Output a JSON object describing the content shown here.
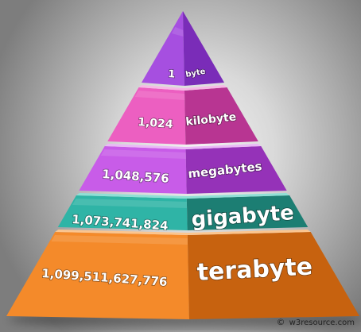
{
  "levels": [
    {
      "value": "1",
      "unit": "byte",
      "front": "#a64fe0",
      "side": "#7a2cb8",
      "top": "#cf9cf2",
      "accent": "#b866ee"
    },
    {
      "value": "1,024",
      "unit": "kilobyte",
      "front": "#ec5fc1",
      "side": "#b83592",
      "top": "#f7b8e6",
      "accent": "#f07fd0"
    },
    {
      "value": "1,048,576",
      "unit": "megabytes",
      "front": "#c85ce8",
      "side": "#9532b8",
      "top": "#eab8f7",
      "accent": "#d57ff0"
    },
    {
      "value": "1,073,741,824",
      "unit": "gigabyte",
      "front": "#2fb4a6",
      "side": "#1c7e73",
      "top": "#8fe0d6",
      "accent": "#3fc6b7"
    },
    {
      "value": "1,099,511,627,776",
      "unit": "terabyte",
      "front": "#f48a2a",
      "side": "#c7620f",
      "top": "#fbc58f",
      "accent": "#f89b41"
    }
  ],
  "credit": {
    "symbol": "©",
    "text": "w3resource.com"
  }
}
